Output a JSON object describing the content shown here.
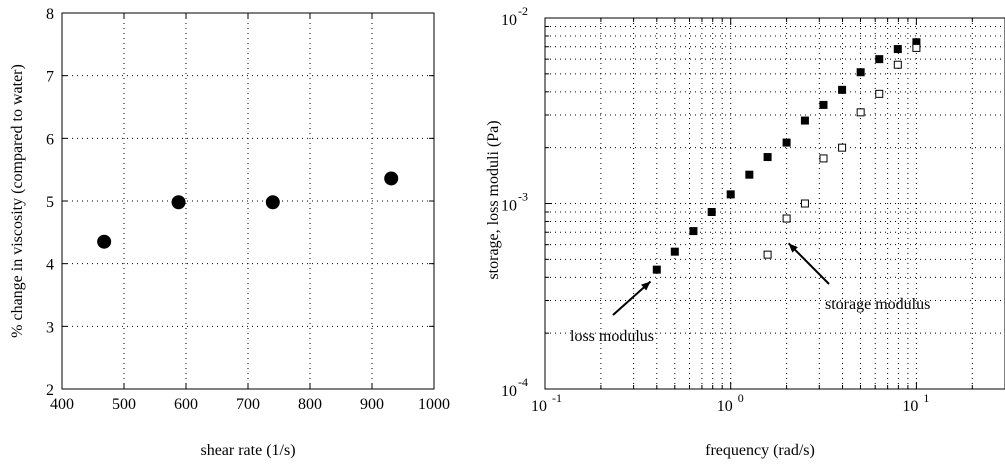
{
  "chart_data": [
    {
      "type": "scatter",
      "xlabel": "shear rate (1/s)",
      "ylabel": "% change in viscosity (compared to water)",
      "xlim": [
        400,
        1000
      ],
      "ylim": [
        2,
        8
      ],
      "xticks": [
        400,
        500,
        600,
        700,
        800,
        900,
        1000
      ],
      "yticks": [
        2,
        3,
        4,
        5,
        6,
        7,
        8
      ],
      "grid": "dotted",
      "series": [
        {
          "marker": "filled-circle",
          "x": [
            468,
            588,
            740,
            931
          ],
          "y": [
            4.35,
            4.98,
            4.98,
            5.36
          ]
        }
      ]
    },
    {
      "type": "scatter",
      "scale": "log-log",
      "xlabel": "frequency (rad/s)",
      "ylabel": "storage, loss moduli  (Pa)",
      "xlim": [
        0.1,
        30
      ],
      "ylim": [
        0.0001,
        0.01
      ],
      "xticks": [
        {
          "base": "10",
          "exp": "-1",
          "value": 0.1
        },
        {
          "base": "10",
          "exp": "0",
          "value": 1
        },
        {
          "base": "10",
          "exp": "1",
          "value": 10
        }
      ],
      "yticks": [
        {
          "base": "10",
          "exp": "-4",
          "value": 0.0001
        },
        {
          "base": "10",
          "exp": "-3",
          "value": 0.001
        },
        {
          "base": "10",
          "exp": "-2",
          "value": 0.01
        }
      ],
      "grid": "dotted",
      "series": [
        {
          "marker": "filled-square",
          "x": [
            0.4,
            0.5,
            0.63,
            0.79,
            1.0,
            1.26,
            1.58,
            2.0,
            2.51,
            3.16,
            3.98,
            5.01,
            6.31,
            7.94,
            10.0
          ],
          "y": [
            0.00044,
            0.00055,
            0.00071,
            0.0009,
            0.00112,
            0.00143,
            0.00178,
            0.00213,
            0.0028,
            0.0034,
            0.0041,
            0.0051,
            0.006,
            0.0068,
            0.0074
          ]
        },
        {
          "marker": "open-square",
          "x": [
            1.58,
            2.0,
            2.51,
            3.16,
            3.98,
            5.01,
            6.31,
            7.94,
            10.0
          ],
          "y": [
            0.00053,
            0.00083,
            0.001,
            0.00175,
            0.002,
            0.0031,
            0.0039,
            0.0056,
            0.0069
          ]
        }
      ],
      "annotations": [
        {
          "text": "loss modulus",
          "arrow_to": [
            0.37,
            0.00038
          ]
        },
        {
          "text": "storage modulus",
          "arrow_to": [
            2.05,
            0.00061
          ]
        }
      ]
    }
  ]
}
